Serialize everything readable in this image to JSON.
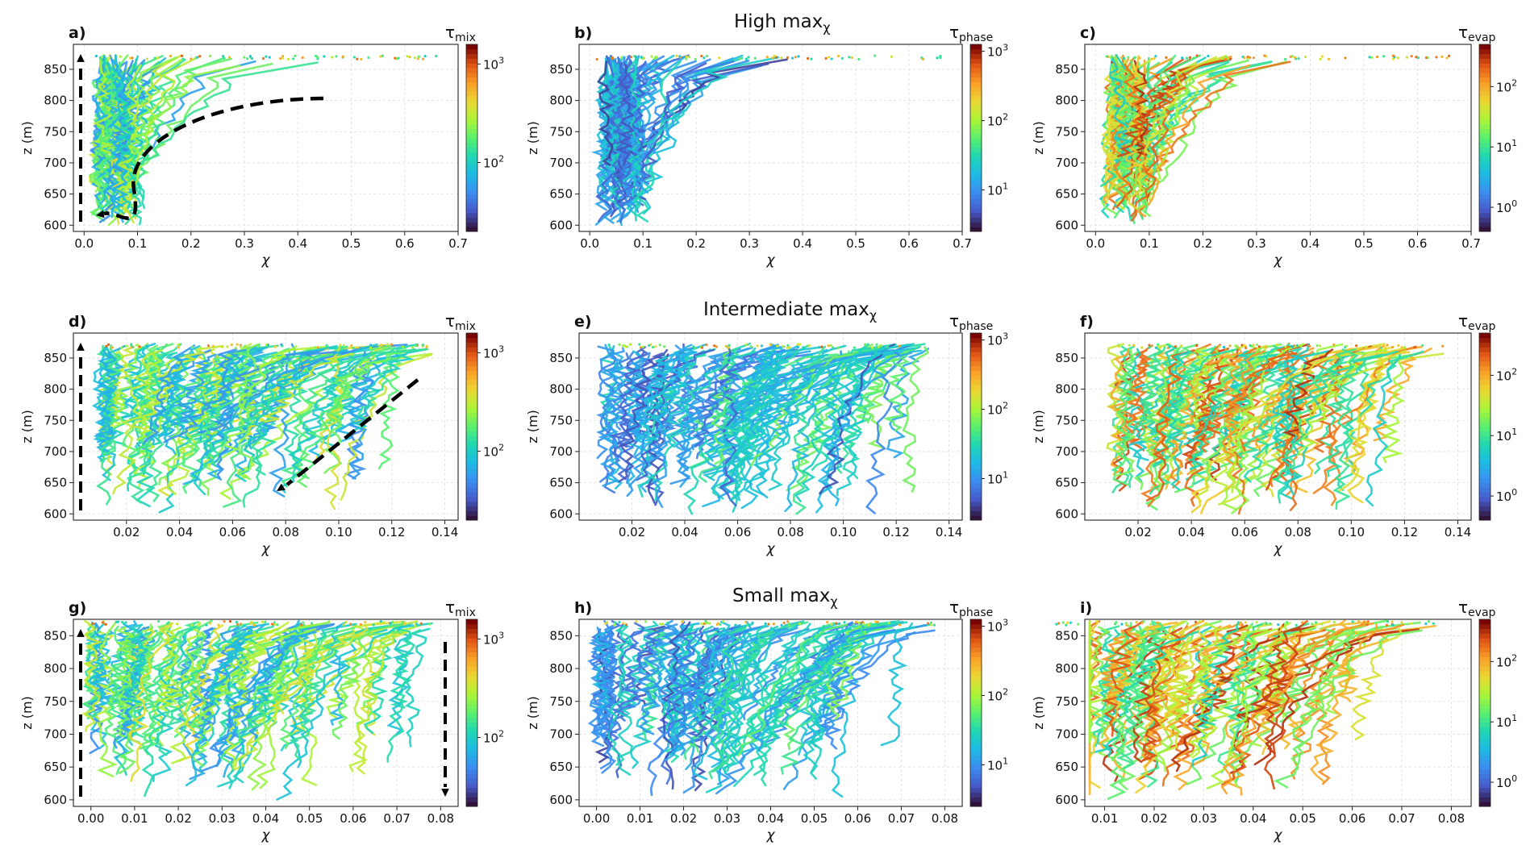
{
  "figure": {
    "row_titles": [
      "High max",
      "Intermediate max",
      "Small max"
    ],
    "row_title_subscript": "χ",
    "colorbar_prefix": "τ",
    "scales": {
      "mix": {
        "sub": "mix",
        "log_min": 1.3,
        "log_max": 3.2,
        "ticks": [
          {
            "v": 2,
            "label": "10",
            "exp": "2"
          },
          {
            "v": 3,
            "label": "10",
            "exp": "3"
          }
        ]
      },
      "phase": {
        "sub": "phase",
        "log_min": 0.4,
        "log_max": 3.1,
        "ticks": [
          {
            "v": 1,
            "label": "10",
            "exp": "1"
          },
          {
            "v": 2,
            "label": "10",
            "exp": "2"
          },
          {
            "v": 3,
            "label": "10",
            "exp": "3"
          }
        ]
      },
      "evap": {
        "sub": "evap",
        "log_min": -0.4,
        "log_max": 2.7,
        "ticks": [
          {
            "v": 0,
            "label": "10",
            "exp": "0"
          },
          {
            "v": 1,
            "label": "10",
            "exp": "1"
          },
          {
            "v": 2,
            "label": "10",
            "exp": "2"
          }
        ]
      }
    },
    "colormap": "turbo"
  },
  "chart_data": [
    {
      "panel": "a)",
      "type": "line",
      "row": 0,
      "col": 0,
      "xlabel": "χ",
      "ylabel": "z (m)",
      "xlim": [
        -0.02,
        0.7
      ],
      "ylim": [
        590,
        890
      ],
      "xticks": [
        "0.0",
        "0.1",
        "0.2",
        "0.3",
        "0.4",
        "0.5",
        "0.6",
        "0.7"
      ],
      "xtick_values": [
        0,
        0.1,
        0.2,
        0.3,
        0.4,
        0.5,
        0.6,
        0.7
      ],
      "yticks": [
        600,
        650,
        700,
        750,
        800,
        850
      ],
      "colorbar": "mix",
      "arrows": [
        "up",
        "curved-down-left"
      ]
    },
    {
      "panel": "b)",
      "type": "line",
      "row": 0,
      "col": 1,
      "xlabel": "χ",
      "ylabel": "z (m)",
      "xlim": [
        -0.02,
        0.7
      ],
      "ylim": [
        590,
        890
      ],
      "xticks": [
        "0.0",
        "0.1",
        "0.2",
        "0.3",
        "0.4",
        "0.5",
        "0.6",
        "0.7"
      ],
      "xtick_values": [
        0,
        0.1,
        0.2,
        0.3,
        0.4,
        0.5,
        0.6,
        0.7
      ],
      "yticks": [
        600,
        650,
        700,
        750,
        800,
        850
      ],
      "colorbar": "phase"
    },
    {
      "panel": "c)",
      "type": "line",
      "row": 0,
      "col": 2,
      "xlabel": "χ",
      "ylabel": "z (m)",
      "xlim": [
        -0.02,
        0.7
      ],
      "ylim": [
        590,
        890
      ],
      "xticks": [
        "0.0",
        "0.1",
        "0.2",
        "0.3",
        "0.4",
        "0.5",
        "0.6",
        "0.7"
      ],
      "xtick_values": [
        0,
        0.1,
        0.2,
        0.3,
        0.4,
        0.5,
        0.6,
        0.7
      ],
      "yticks": [
        600,
        650,
        700,
        750,
        800,
        850
      ],
      "colorbar": "evap"
    },
    {
      "panel": "d)",
      "type": "line",
      "row": 1,
      "col": 0,
      "xlabel": "χ",
      "ylabel": "z (m)",
      "xlim": [
        0.0,
        0.145
      ],
      "ylim": [
        590,
        890
      ],
      "xticks": [
        "0.02",
        "0.04",
        "0.06",
        "0.08",
        "0.10",
        "0.12",
        "0.14"
      ],
      "xtick_values": [
        0.02,
        0.04,
        0.06,
        0.08,
        0.1,
        0.12,
        0.14
      ],
      "yticks": [
        600,
        650,
        700,
        750,
        800,
        850
      ],
      "colorbar": "mix",
      "arrows": [
        "up",
        "diagonal-down-left"
      ]
    },
    {
      "panel": "e)",
      "type": "line",
      "row": 1,
      "col": 1,
      "xlabel": "χ",
      "ylabel": "z (m)",
      "xlim": [
        0.0,
        0.145
      ],
      "ylim": [
        590,
        890
      ],
      "xticks": [
        "0.02",
        "0.04",
        "0.06",
        "0.08",
        "0.10",
        "0.12",
        "0.14"
      ],
      "xtick_values": [
        0.02,
        0.04,
        0.06,
        0.08,
        0.1,
        0.12,
        0.14
      ],
      "yticks": [
        600,
        650,
        700,
        750,
        800,
        850
      ],
      "colorbar": "phase"
    },
    {
      "panel": "f)",
      "type": "line",
      "row": 1,
      "col": 2,
      "xlabel": "χ",
      "ylabel": "z (m)",
      "xlim": [
        0.0,
        0.145
      ],
      "ylim": [
        590,
        890
      ],
      "xticks": [
        "0.02",
        "0.04",
        "0.06",
        "0.08",
        "0.10",
        "0.12",
        "0.14"
      ],
      "xtick_values": [
        0.02,
        0.04,
        0.06,
        0.08,
        0.1,
        0.12,
        0.14
      ],
      "yticks": [
        600,
        650,
        700,
        750,
        800,
        850
      ],
      "colorbar": "evap"
    },
    {
      "panel": "g)",
      "type": "line",
      "row": 2,
      "col": 0,
      "xlabel": "χ",
      "ylabel": "z (m)",
      "xlim": [
        -0.004,
        0.084
      ],
      "ylim": [
        590,
        875
      ],
      "xticks": [
        "0.00",
        "0.01",
        "0.02",
        "0.03",
        "0.04",
        "0.05",
        "0.06",
        "0.07",
        "0.08"
      ],
      "xtick_values": [
        0,
        0.01,
        0.02,
        0.03,
        0.04,
        0.05,
        0.06,
        0.07,
        0.08
      ],
      "yticks": [
        600,
        650,
        700,
        750,
        800,
        850
      ],
      "colorbar": "mix",
      "arrows": [
        "up",
        "down"
      ]
    },
    {
      "panel": "h)",
      "type": "line",
      "row": 2,
      "col": 1,
      "xlabel": "χ",
      "ylabel": "z (m)",
      "xlim": [
        -0.004,
        0.084
      ],
      "ylim": [
        590,
        875
      ],
      "xticks": [
        "0.00",
        "0.01",
        "0.02",
        "0.03",
        "0.04",
        "0.05",
        "0.06",
        "0.07",
        "0.08"
      ],
      "xtick_values": [
        0,
        0.01,
        0.02,
        0.03,
        0.04,
        0.05,
        0.06,
        0.07,
        0.08
      ],
      "yticks": [
        600,
        650,
        700,
        750,
        800,
        850
      ],
      "colorbar": "phase"
    },
    {
      "panel": "i)",
      "type": "line",
      "row": 2,
      "col": 2,
      "xlabel": "χ",
      "ylabel": "z (m)",
      "xlim": [
        0.006,
        0.084
      ],
      "ylim": [
        590,
        875
      ],
      "xticks": [
        "0.01",
        "0.02",
        "0.03",
        "0.04",
        "0.05",
        "0.06",
        "0.07",
        "0.08"
      ],
      "xtick_values": [
        0.01,
        0.02,
        0.03,
        0.04,
        0.05,
        0.06,
        0.07,
        0.08
      ],
      "yticks": [
        600,
        650,
        700,
        750,
        800,
        850
      ],
      "colorbar": "evap"
    }
  ]
}
